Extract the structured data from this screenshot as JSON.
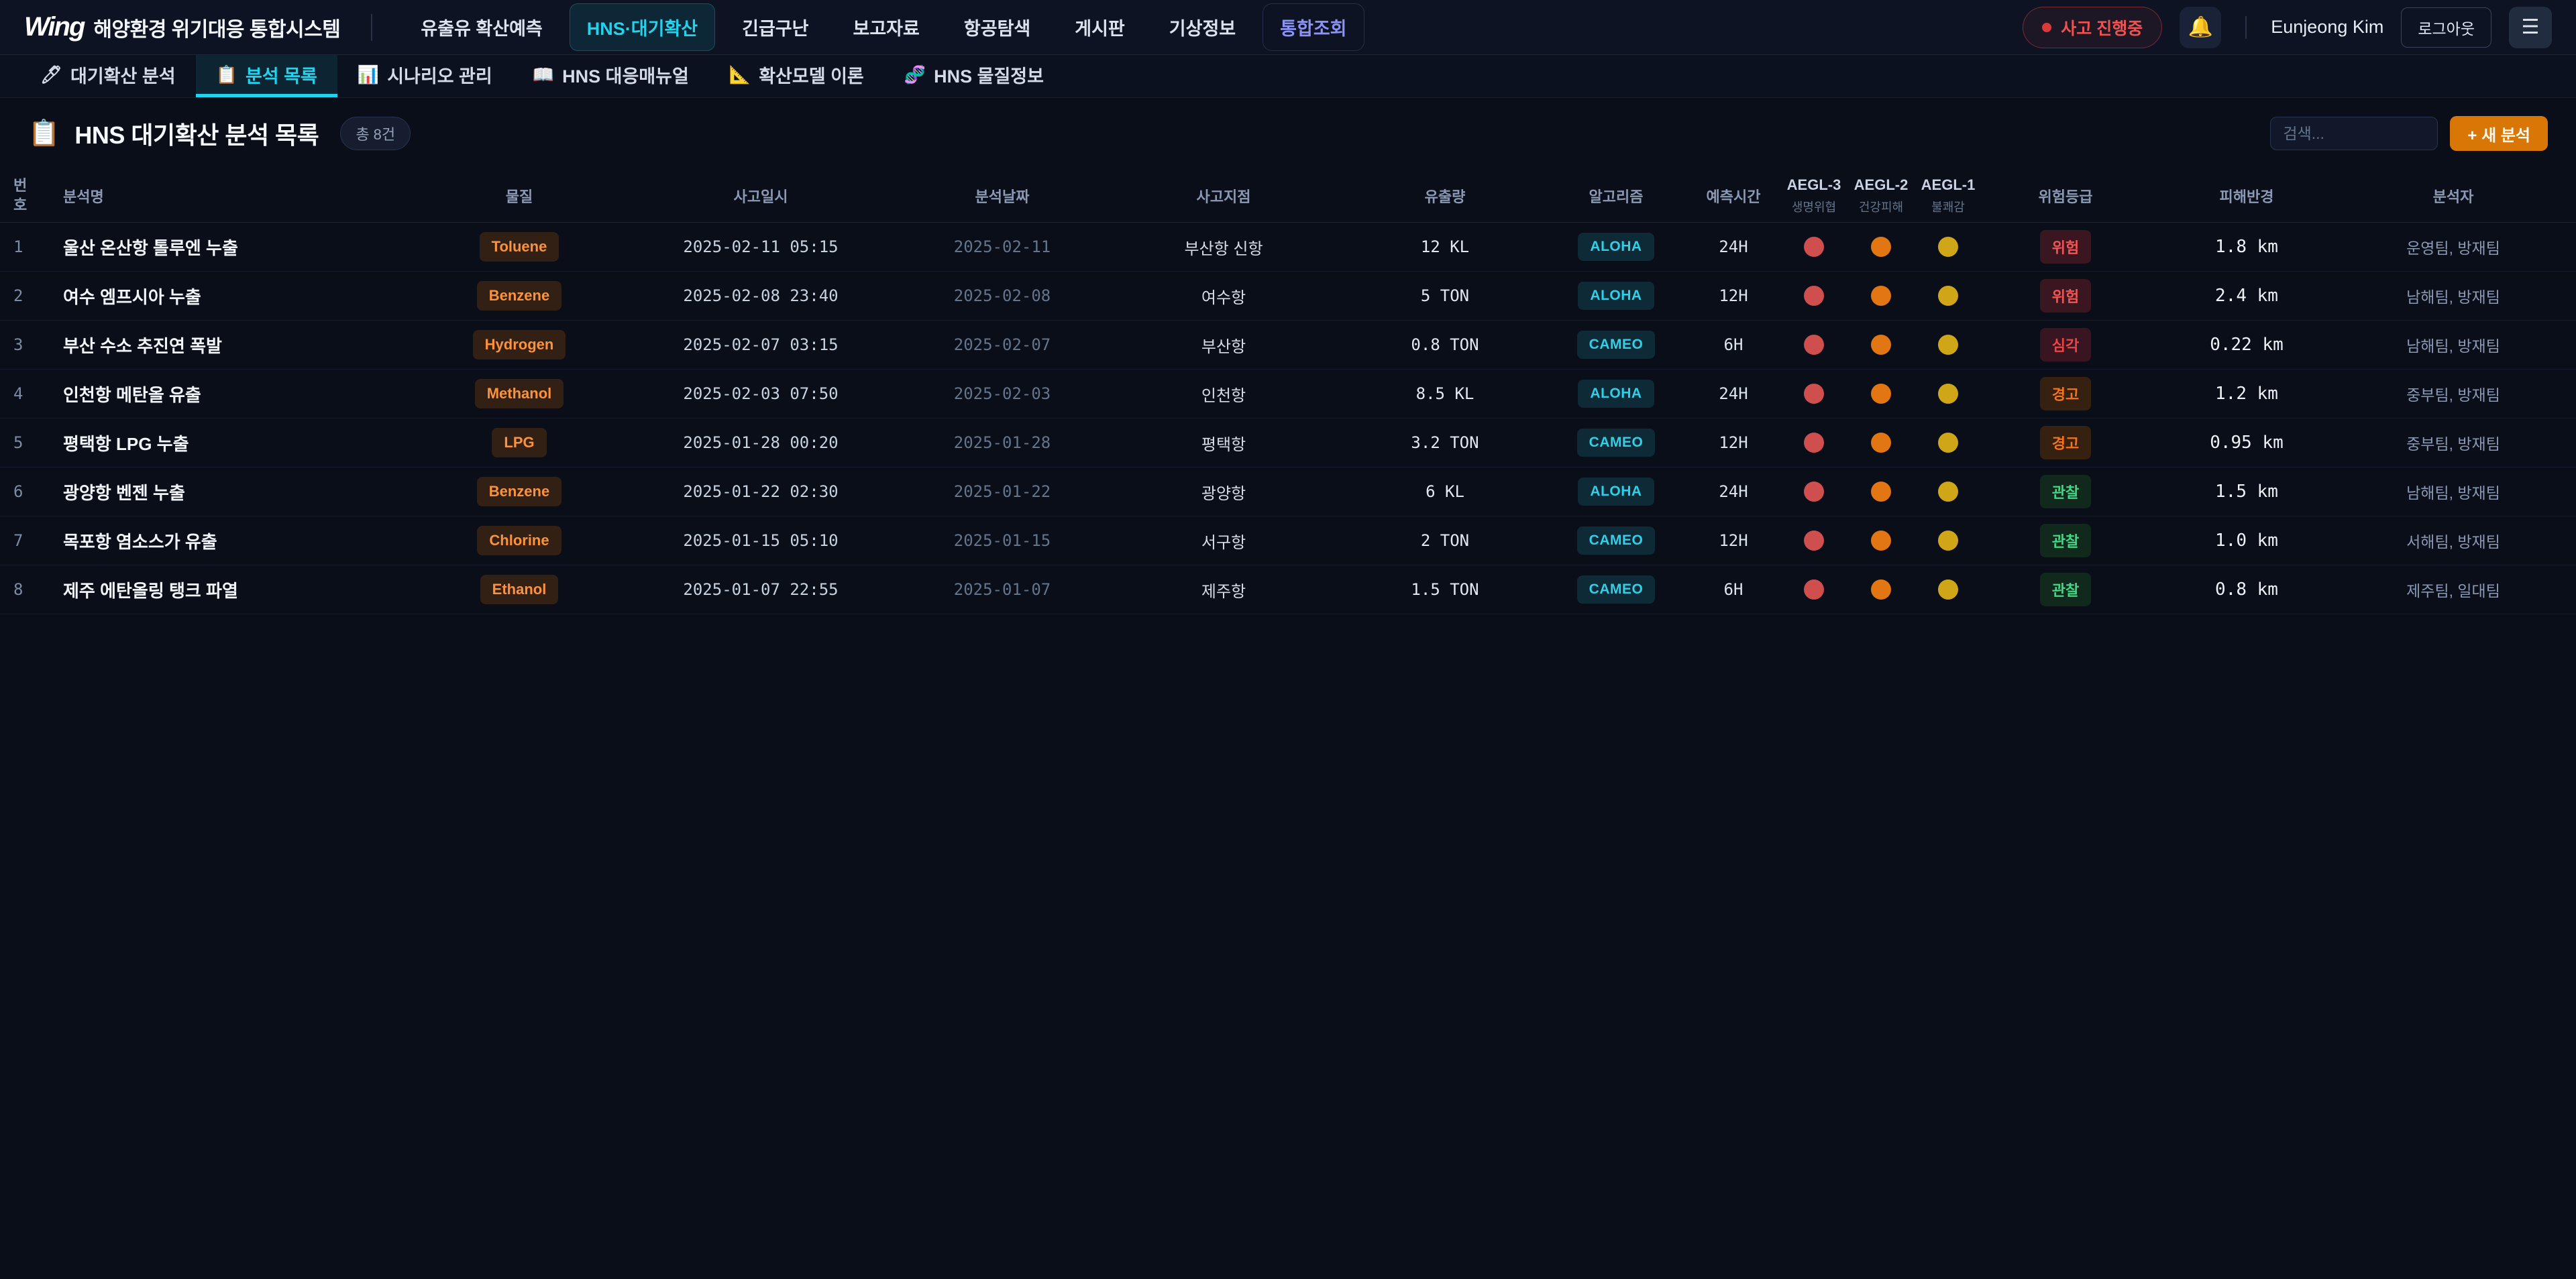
{
  "topbar": {
    "logo_mark": "W",
    "logo_rest": "ing",
    "system_title": "해양환경 위기대응 통합시스템",
    "nav": [
      {
        "label": "유출유 확산예측"
      },
      {
        "label": "HNS·대기확산"
      },
      {
        "label": "긴급구난"
      },
      {
        "label": "보고자료"
      },
      {
        "label": "항공탐색"
      },
      {
        "label": "게시판"
      },
      {
        "label": "기상정보"
      },
      {
        "label": "통합조회"
      }
    ],
    "incident_badge": "사고 진행중",
    "bell_icon": "🔔",
    "user_name": "Eunjeong Kim",
    "logout_label": "로그아웃",
    "menu_icon": "☰"
  },
  "tabs": [
    {
      "icon": "🖊",
      "label": "대기확산 분석"
    },
    {
      "icon": "📋",
      "label": "분석 목록"
    },
    {
      "icon": "📊",
      "label": "시나리오 관리"
    },
    {
      "icon": "📖",
      "label": "HNS 대응매뉴얼"
    },
    {
      "icon": "📐",
      "label": "확산모델 이론"
    },
    {
      "icon": "🧬",
      "label": "HNS 물질정보"
    }
  ],
  "page": {
    "title_icon": "📋",
    "title": "HNS 대기확산 분석 목록",
    "count_badge": "총 8건",
    "search_placeholder": "검색...",
    "new_button": "+ 새 분석"
  },
  "table": {
    "headers": {
      "no": "번호",
      "name": "분석명",
      "material": "물질",
      "incident_datetime": "사고일시",
      "analysis_date": "분석날짜",
      "location": "사고지점",
      "amount": "유출량",
      "algorithm": "알고리즘",
      "forecast_time": "예측시간",
      "aegl3": {
        "main": "AEGL-3",
        "sub": "생명위협"
      },
      "aegl2": {
        "main": "AEGL-2",
        "sub": "건강피해"
      },
      "aegl1": {
        "main": "AEGL-1",
        "sub": "불쾌감"
      },
      "risk": "위험등급",
      "radius": "피해반경",
      "analyst": "분석자"
    },
    "rows": [
      {
        "no": "1",
        "name": "울산 온산항 톨루엔 누출",
        "material": "Toluene",
        "incident_datetime": "2025-02-11 05:15",
        "analysis_date": "2025-02-11",
        "location": "부산항 신항",
        "amount": "12 KL",
        "algorithm": "ALOHA",
        "forecast_time": "24H",
        "risk": {
          "label": "위험",
          "level": "danger"
        },
        "damage_radius": "1.8 km",
        "analyst": "운영팀, 방재팀"
      },
      {
        "no": "2",
        "name": "여수 엠프시아 누출",
        "material": "Benzene",
        "incident_datetime": "2025-02-08 23:40",
        "analysis_date": "2025-02-08",
        "location": "여수항",
        "amount": "5 TON",
        "algorithm": "ALOHA",
        "forecast_time": "12H",
        "risk": {
          "label": "위험",
          "level": "danger"
        },
        "damage_radius": "2.4 km",
        "analyst": "남해팀, 방재팀"
      },
      {
        "no": "3",
        "name": "부산 수소 추진연 폭발",
        "material": "Hydrogen",
        "incident_datetime": "2025-02-07 03:15",
        "analysis_date": "2025-02-07",
        "location": "부산항",
        "amount": "0.8 TON",
        "algorithm": "CAMEO",
        "forecast_time": "6H",
        "risk": {
          "label": "심각",
          "level": "severe"
        },
        "damage_radius": "0.22 km",
        "analyst": "남해팀, 방재팀"
      },
      {
        "no": "4",
        "name": "인천항 메탄올 유출",
        "material": "Methanol",
        "incident_datetime": "2025-02-03 07:50",
        "analysis_date": "2025-02-03",
        "location": "인천항",
        "amount": "8.5 KL",
        "algorithm": "ALOHA",
        "forecast_time": "24H",
        "risk": {
          "label": "경고",
          "level": "warning"
        },
        "damage_radius": "1.2 km",
        "analyst": "중부팀, 방재팀"
      },
      {
        "no": "5",
        "name": "평택항 LPG 누출",
        "material": "LPG",
        "incident_datetime": "2025-01-28 00:20",
        "analysis_date": "2025-01-28",
        "location": "평택항",
        "amount": "3.2 TON",
        "algorithm": "CAMEO",
        "forecast_time": "12H",
        "risk": {
          "label": "경고",
          "level": "warning"
        },
        "damage_radius": "0.95 km",
        "analyst": "중부팀, 방재팀"
      },
      {
        "no": "6",
        "name": "광양항 벤젠 누출",
        "material": "Benzene",
        "incident_datetime": "2025-01-22 02:30",
        "analysis_date": "2025-01-22",
        "location": "광양항",
        "amount": "6 KL",
        "algorithm": "ALOHA",
        "forecast_time": "24H",
        "risk": {
          "label": "관찰",
          "level": "observe"
        },
        "damage_radius": "1.5 km",
        "analyst": "남해팀, 방재팀"
      },
      {
        "no": "7",
        "name": "목포항 염소스가 유출",
        "material": "Chlorine",
        "incident_datetime": "2025-01-15 05:10",
        "analysis_date": "2025-01-15",
        "location": "서구항",
        "amount": "2 TON",
        "algorithm": "CAMEO",
        "forecast_time": "12H",
        "risk": {
          "label": "관찰",
          "level": "observe"
        },
        "damage_radius": "1.0 km",
        "analyst": "서해팀, 방재팀"
      },
      {
        "no": "8",
        "name": "제주 에탄올링 탱크 파열",
        "material": "Ethanol",
        "incident_datetime": "2025-01-07 22:55",
        "analysis_date": "2025-01-07",
        "location": "제주항",
        "amount": "1.5 TON",
        "algorithm": "CAMEO",
        "forecast_time": "6H",
        "risk": {
          "label": "관찰",
          "level": "observe"
        },
        "damage_radius": "0.8 km",
        "analyst": "제주팀, 일대팀"
      }
    ]
  },
  "colors": {
    "accent_cyan": "#22d3ee",
    "accent_indigo": "#8b93f8",
    "incident_red": "#ef5350",
    "new_button_orange": "#d97706",
    "material_badge_text": "#fb923c",
    "aegl3_dot": "#cf4f4f",
    "aegl2_dot": "#e17612",
    "aegl1_dot": "#d0a619",
    "risk_danger_text": "#f25555",
    "risk_warning_text": "#f97316",
    "risk_observe_text": "#3fd985"
  }
}
